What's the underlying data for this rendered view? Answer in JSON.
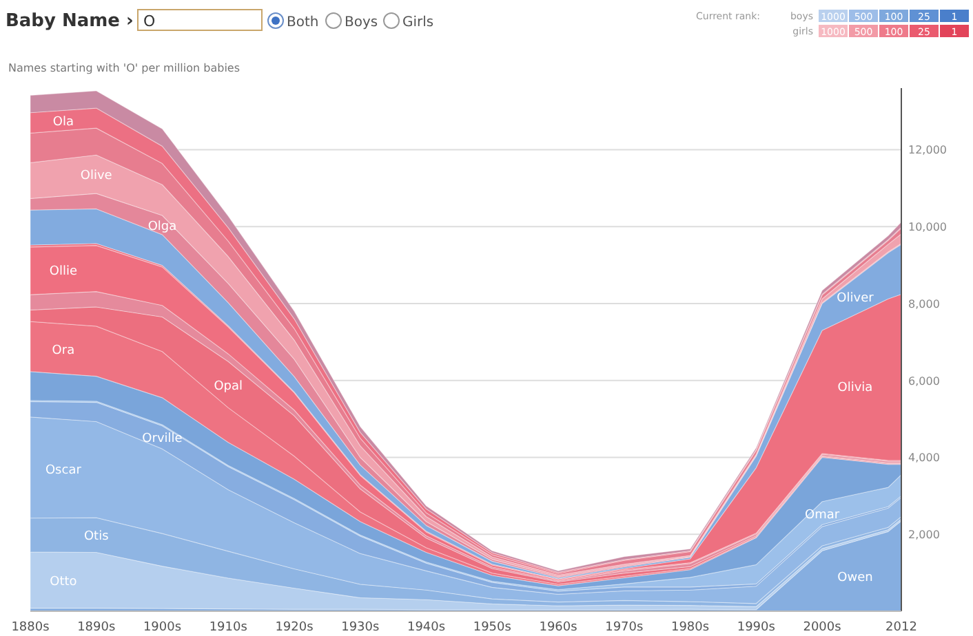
{
  "chart_data": {
    "type": "area",
    "stacked": true,
    "title": "Names starting with 'O' per million babies",
    "annotations": [
      "Baby Name ›",
      "O",
      "Both",
      "Boys",
      "Girls",
      "Current rank:",
      "boys",
      "girls",
      "1000",
      "500",
      "100",
      "25",
      "1"
    ],
    "x": [
      1880,
      1890,
      1900,
      1910,
      1920,
      1930,
      1940,
      1950,
      1960,
      1970,
      1980,
      1990,
      2000,
      2010,
      2012
    ],
    "xlim": [
      1880,
      2012
    ],
    "xticks": [
      {
        "value": 1880,
        "label": "1880s"
      },
      {
        "value": 1890,
        "label": "1890s"
      },
      {
        "value": 1900,
        "label": "1900s"
      },
      {
        "value": 1910,
        "label": "1910s"
      },
      {
        "value": 1920,
        "label": "1920s"
      },
      {
        "value": 1930,
        "label": "1930s"
      },
      {
        "value": 1940,
        "label": "1940s"
      },
      {
        "value": 1950,
        "label": "1950s"
      },
      {
        "value": 1960,
        "label": "1960s"
      },
      {
        "value": 1970,
        "label": "1970s"
      },
      {
        "value": 1980,
        "label": "1980s"
      },
      {
        "value": 1990,
        "label": "1990s"
      },
      {
        "value": 2000,
        "label": "2000s"
      },
      2012
    ],
    "ylim": [
      0,
      13600
    ],
    "yticks": [
      {
        "value": 2000,
        "label": "2,000"
      },
      {
        "value": 4000,
        "label": "4,000"
      },
      {
        "value": 6000,
        "label": "6,000"
      },
      {
        "value": 8000,
        "label": "8,000"
      },
      {
        "value": 10000,
        "label": "10,000"
      },
      {
        "value": 12000,
        "label": "12,000"
      }
    ],
    "grid": "y",
    "legend": false,
    "series": [
      {
        "name": "Owen",
        "color": "#86aee0",
        "values": [
          80,
          80,
          70,
          60,
          50,
          50,
          40,
          40,
          40,
          40,
          50,
          40,
          1570,
          2070,
          2350
        ]
      },
      {
        "name": "Otto",
        "color": "#b5cfee",
        "values": [
          1460,
          1450,
          1100,
          800,
          550,
          300,
          260,
          150,
          100,
          120,
          100,
          80,
          60,
          50,
          50
        ]
      },
      {
        "name": "Otis",
        "color": "#8fb5e3",
        "values": [
          880,
          900,
          850,
          700,
          500,
          350,
          250,
          130,
          100,
          120,
          100,
          80,
          70,
          60,
          60
        ]
      },
      {
        "name": "Oscar",
        "color": "#93b8e6",
        "values": [
          2630,
          2500,
          2200,
          1600,
          1200,
          800,
          500,
          300,
          200,
          250,
          300,
          450,
          500,
          500,
          500
        ]
      },
      {
        "name": "Orville",
        "color": "#87ade0",
        "values": [
          400,
          500,
          600,
          600,
          600,
          450,
          200,
          130,
          80,
          100,
          80,
          60,
          50,
          40,
          40
        ]
      },
      {
        "name": "Omar",
        "color": "#9cc0ea",
        "values": [
          30,
          30,
          30,
          30,
          30,
          30,
          30,
          30,
          40,
          80,
          250,
          500,
          600,
          500,
          550
        ]
      },
      {
        "color": "#7aa5da",
        "values": [
          750,
          650,
          700,
          600,
          500,
          350,
          250,
          150,
          100,
          160,
          200,
          700,
          1150,
          600,
          270
        ]
      },
      {
        "name": "Ora",
        "color": "#ee7382",
        "values": [
          1300,
          1300,
          1200,
          900,
          600,
          250,
          120,
          60,
          40,
          40,
          30,
          20,
          20,
          20,
          20
        ]
      },
      {
        "name": "Opal",
        "color": "#ec6f7f",
        "values": [
          300,
          500,
          900,
          1200,
          1050,
          600,
          250,
          120,
          60,
          80,
          50,
          30,
          20,
          20,
          20
        ]
      },
      {
        "color": "#e58a9c",
        "values": [
          400,
          400,
          300,
          200,
          150,
          100,
          60,
          40,
          30,
          60,
          80,
          50,
          40,
          40,
          40
        ]
      },
      {
        "name": "Ollie",
        "color": "#ef6f80",
        "values": [
          1240,
          1200,
          1000,
          700,
          450,
          250,
          100,
          50,
          30,
          30,
          20,
          20,
          20,
          20,
          20
        ]
      },
      {
        "name": "Olivia",
        "color": "#ee7080",
        "values": [
          50,
          50,
          40,
          30,
          20,
          20,
          20,
          20,
          20,
          30,
          100,
          1700,
          3200,
          4200,
          4320
        ]
      },
      {
        "name": "Oliver",
        "color": "#82abdf",
        "values": [
          910,
          900,
          800,
          600,
          400,
          250,
          150,
          80,
          30,
          40,
          40,
          300,
          700,
          1200,
          1300
        ]
      },
      {
        "name": "Olga",
        "color": "#e4879a",
        "values": [
          300,
          400,
          500,
          500,
          450,
          200,
          100,
          50,
          30,
          30,
          20,
          20,
          20,
          20,
          20
        ]
      },
      {
        "name": "Olive",
        "color": "#f0a2ae",
        "values": [
          930,
          1000,
          800,
          700,
          500,
          300,
          130,
          60,
          40,
          40,
          30,
          30,
          100,
          200,
          250
        ]
      },
      {
        "color": "#e77d8f",
        "values": [
          770,
          700,
          550,
          400,
          300,
          200,
          100,
          60,
          40,
          100,
          100,
          100,
          100,
          100,
          150
        ]
      },
      {
        "name": "Ola",
        "color": "#ec7083",
        "values": [
          530,
          520,
          450,
          350,
          250,
          150,
          100,
          50,
          30,
          20,
          20,
          20,
          20,
          20,
          20
        ]
      },
      {
        "color": "#c98aa3",
        "values": [
          450,
          450,
          450,
          300,
          200,
          150,
          80,
          50,
          40,
          80,
          50,
          50,
          100,
          100,
          140
        ]
      }
    ]
  }
}
